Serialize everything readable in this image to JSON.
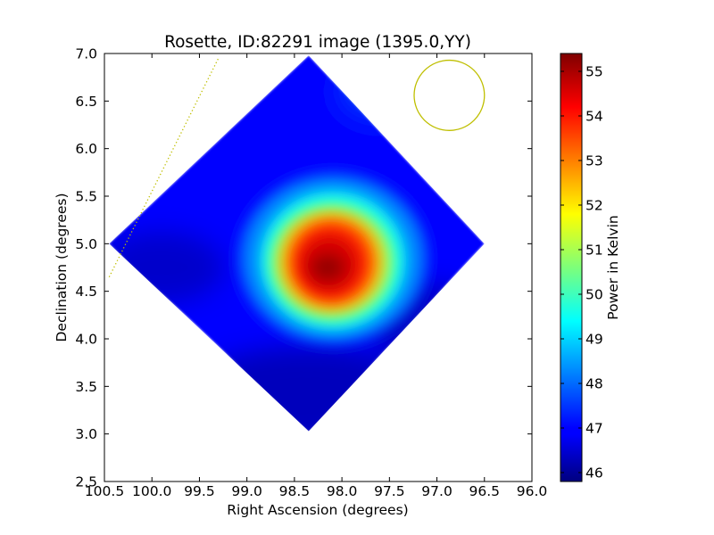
{
  "chart_data": {
    "type": "heatmap",
    "title": "Rosette, ID:82291 image (1395.0,YY)",
    "xlabel": "Right Ascension (degrees)",
    "ylabel": "Declination (degrees)",
    "xlim": [
      100.5,
      96.0
    ],
    "ylim": [
      2.5,
      7.0
    ],
    "x_inverted": true,
    "xticks": [
      100.5,
      100.0,
      99.5,
      99.0,
      98.5,
      98.0,
      97.5,
      97.0,
      96.5,
      96.0
    ],
    "xtick_labels": [
      "100.5",
      "100.0",
      "99.5",
      "99.0",
      "98.5",
      "98.0",
      "97.5",
      "97.0",
      "96.5",
      "96.0"
    ],
    "yticks": [
      2.5,
      3.0,
      3.5,
      4.0,
      4.5,
      5.0,
      5.5,
      6.0,
      6.5,
      7.0
    ],
    "ytick_labels": [
      "2.5",
      "3.0",
      "3.5",
      "4.0",
      "4.5",
      "5.0",
      "5.5",
      "6.0",
      "6.5",
      "7.0"
    ],
    "colorbar": {
      "label": "Power in Kelvin",
      "colormap": "jet",
      "range": [
        45.8,
        55.4
      ],
      "ticks": [
        46,
        47,
        48,
        49,
        50,
        51,
        52,
        53,
        54,
        55
      ],
      "tick_labels": [
        "46",
        "47",
        "48",
        "49",
        "50",
        "51",
        "52",
        "53",
        "54",
        "55"
      ]
    },
    "map_region": {
      "shape": "diamond",
      "vertices_radec": [
        [
          98.35,
          6.98
        ],
        [
          96.5,
          5.0
        ],
        [
          98.35,
          3.03
        ],
        [
          100.45,
          5.0
        ]
      ]
    },
    "peak": {
      "ra": 98.15,
      "dec": 4.75,
      "value": 55.4
    },
    "background_value": 47.0,
    "beam_circle": {
      "ra": 96.87,
      "dec": 6.56,
      "radius_deg": 0.37,
      "color": "#bfbf00"
    },
    "dotted_line": {
      "from": [
        100.45,
        4.65
      ],
      "to": [
        99.3,
        6.95
      ],
      "color": "#bfbf00"
    },
    "grid": false
  }
}
